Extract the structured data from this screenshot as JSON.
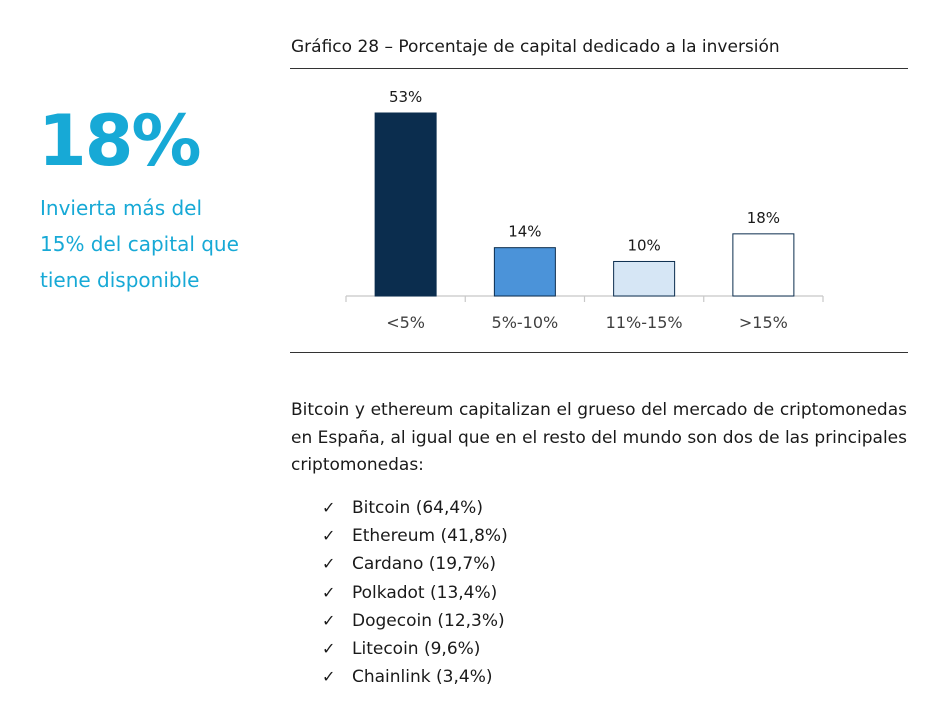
{
  "highlight": {
    "value": "18%",
    "caption": "Invierta más del 15% del capital que tiene disponible",
    "color": "#17a9d6"
  },
  "chart_data": {
    "type": "bar",
    "title": "Gráfico 28 – Porcentaje de capital dedicado a la inversión",
    "categories": [
      "<5%",
      "5%-10%",
      "11%-15%",
      ">15%"
    ],
    "values": [
      53,
      14,
      10,
      18
    ],
    "value_labels": [
      "53%",
      "14%",
      "10%",
      "18%"
    ],
    "colors": [
      "#0b2d4e",
      "#4b93d9",
      "#d6e6f5",
      "#ffffff"
    ],
    "ylim": [
      0,
      53
    ],
    "grid": false,
    "legend": "none"
  },
  "body": {
    "paragraph": "Bitcoin y ethereum capitalizan el grueso del mercado de criptomonedas en España, al igual que en el resto del mundo son dos de las principales criptomonedas:",
    "check_icon": "✓",
    "items": [
      "Bitcoin (64,4%)",
      "Ethereum (41,8%)",
      "Cardano (19,7%)",
      "Polkadot (13,4%)",
      "Dogecoin (12,3%)",
      "Litecoin (9,6%)",
      "Chainlink (3,4%)"
    ]
  }
}
